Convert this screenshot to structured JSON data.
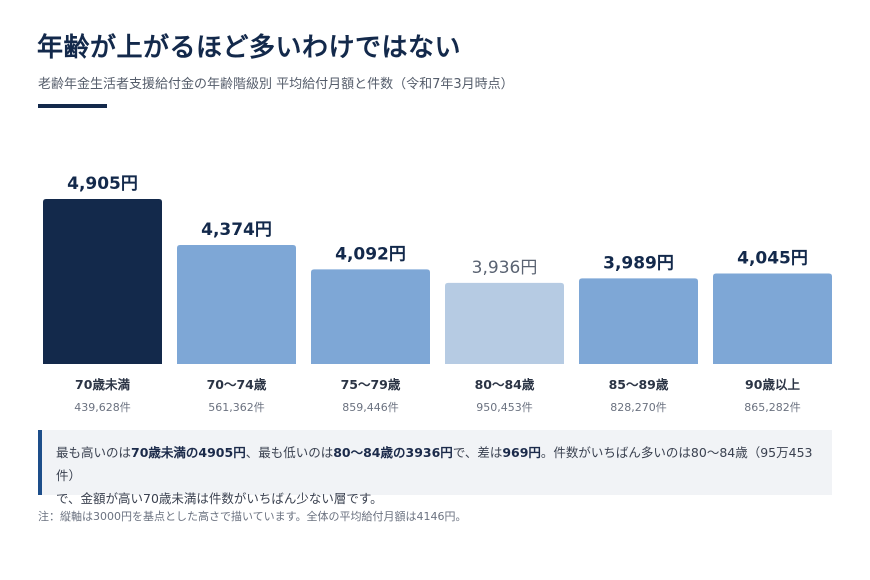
{
  "header": {
    "title": "年齢が上がるほど多いわけではない",
    "subtitle": "老齢年金生活者支援給付金の年齢階級別 平均給付月額と件数（令和7年3月時点）"
  },
  "chart_data": {
    "type": "bar",
    "categories": [
      "70歳未満",
      "70〜74歳",
      "75〜79歳",
      "80〜84歳",
      "85〜89歳",
      "90歳以上"
    ],
    "values": [
      4905,
      4374,
      4092,
      3936,
      3989,
      4045
    ],
    "value_labels": [
      "4,905円",
      "4,374円",
      "4,092円",
      "3,936円",
      "3,989円",
      "4,045円"
    ],
    "counts": [
      "439,628件",
      "561,362件",
      "859,446件",
      "950,453件",
      "828,270件",
      "865,282件"
    ],
    "baseline": 3000,
    "highlight": {
      "max_index": 0,
      "min_index": 3
    },
    "colors": {
      "max": "#13294b",
      "min": "#b6cbe3",
      "default": "#7ea7d6"
    }
  },
  "summary": {
    "s1": "最も高いのは",
    "b1": "70歳未満の4905円",
    "s2": "、最も低いのは",
    "b2": "80〜84歳の3936円",
    "s3": "で、差は",
    "b3": "969円",
    "s4": "。件数がいちばん多いのは80〜84歳（95万453件）",
    "s5": "で、金額が高い70歳未満は件数がいちばん少ない層です。"
  },
  "footnote": "注：縦軸は3000円を基点とした高さで描いています。全体の平均給付月額は4146円。"
}
